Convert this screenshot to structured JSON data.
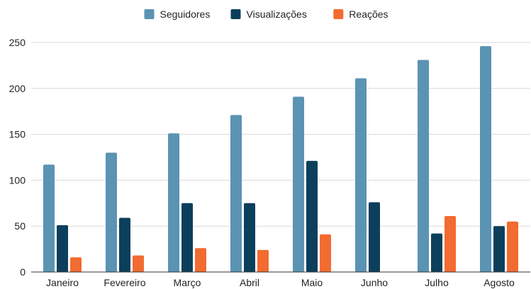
{
  "chart_data": {
    "type": "bar",
    "title": "",
    "xlabel": "",
    "ylabel": "",
    "ylim": [
      0,
      250
    ],
    "yticks": [
      0,
      50,
      100,
      150,
      200,
      250
    ],
    "grid": true,
    "legend_position": "top-center",
    "categories": [
      "Janeiro",
      "Fevereiro",
      "Março",
      "Abril",
      "Maio",
      "Junho",
      "Julho",
      "Agosto"
    ],
    "series": [
      {
        "name": "Seguidores",
        "color": "#5b93b3",
        "values": [
          117,
          130,
          151,
          171,
          191,
          211,
          231,
          246
        ]
      },
      {
        "name": "Visualizações",
        "color": "#0c3f5c",
        "values": [
          51,
          59,
          75,
          75,
          121,
          76,
          42,
          50
        ]
      },
      {
        "name": "Reações",
        "color": "#f26b30",
        "values": [
          16,
          18,
          26,
          24,
          41,
          0,
          61,
          55
        ]
      }
    ]
  }
}
